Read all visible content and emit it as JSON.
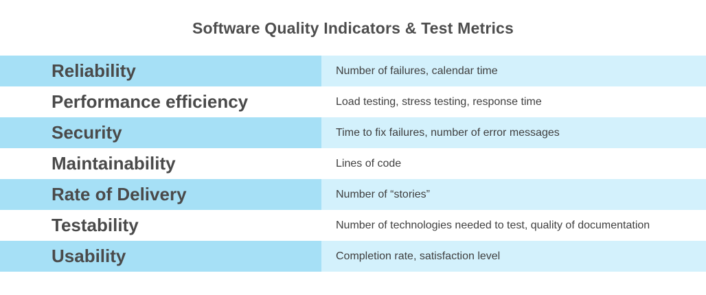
{
  "title": "Software Quality Indicators & Test Metrics",
  "colors": {
    "shaded_left": "#a6e0f6",
    "shaded_right": "#d3f1fc",
    "plain": "#ffffff",
    "title_text": "#4d4d4d",
    "body_text": "#4a4a4a"
  },
  "rows": [
    {
      "indicator": "Reliability",
      "metrics": "Number of failures, calendar time"
    },
    {
      "indicator": "Performance efficiency",
      "metrics": "Load testing, stress testing, response time"
    },
    {
      "indicator": "Security",
      "metrics": "Time to fix failures, number of error messages"
    },
    {
      "indicator": "Maintainability",
      "metrics": "Lines of code"
    },
    {
      "indicator": "Rate of Delivery",
      "metrics": "Number of “stories”"
    },
    {
      "indicator": "Testability",
      "metrics": "Number of technologies needed to test, quality of documentation"
    },
    {
      "indicator": "Usability",
      "metrics": "Completion rate, satisfaction level"
    }
  ]
}
